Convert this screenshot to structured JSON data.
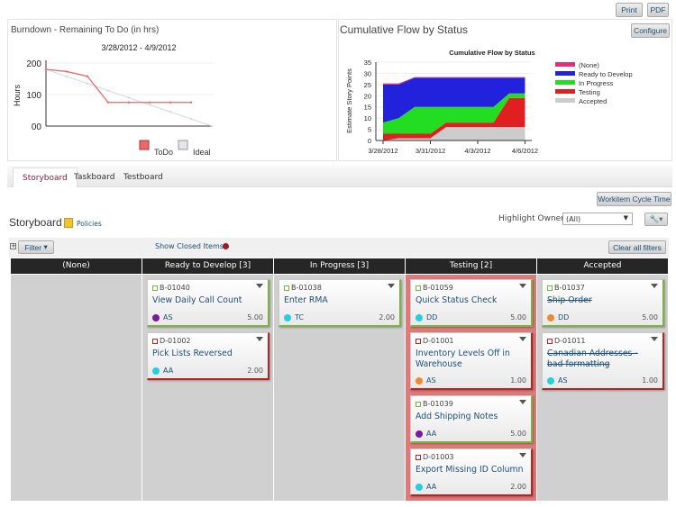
{
  "toolbar": {
    "print": "Print",
    "pdf": "PDF"
  },
  "burndown": {
    "title": "Burndown - Remaining To Do (in hrs)",
    "subtitle": "3/28/2012 - 4/9/2012"
  },
  "cfd": {
    "title": "Cumulative Flow by Status",
    "configure": "Configure"
  },
  "chart_data": [
    {
      "type": "line",
      "subtitle": "3/28/2012 - 4/9/2012",
      "ylabel": "Hours",
      "ylim": [
        0,
        200
      ],
      "yticks": [
        "200",
        "100",
        "00"
      ],
      "grid": true,
      "legend": "bottom",
      "series": [
        {
          "name": "ToDo",
          "color": "#e86a6a",
          "values": [
            180,
            173,
            158,
            75,
            75,
            75,
            75,
            75
          ]
        },
        {
          "name": "Ideal",
          "color": "#d4d8e0",
          "values": [
            180,
            157.5,
            135,
            112.5,
            90,
            67.5,
            45,
            22.5,
            0
          ]
        }
      ]
    },
    {
      "type": "area",
      "title": "Cumulative Flow by Status",
      "ylabel": "Estimate Story Points",
      "ylim": [
        0,
        35
      ],
      "yticks": [
        0,
        5,
        10,
        15,
        20,
        25,
        30,
        35
      ],
      "x": [
        "3/28/2012",
        "3/29/2012",
        "3/30/2012",
        "3/31/2012",
        "4/1/2012",
        "4/2/2012",
        "4/3/2012",
        "4/4/2012",
        "4/5/2012",
        "4/6/2012"
      ],
      "xticks": [
        "3/28/2012",
        "3/31/2012",
        "4/3/2012",
        "4/6/2012"
      ],
      "legend": "right",
      "stacked": true,
      "series": [
        {
          "name": "Accepted",
          "color": "#cccccc",
          "values": [
            0,
            1,
            1,
            1,
            6,
            6,
            6,
            6,
            6,
            6
          ]
        },
        {
          "name": "Testing",
          "color": "#e02020",
          "values": [
            3,
            2,
            2,
            2,
            2,
            2,
            2,
            2,
            13,
            13
          ]
        },
        {
          "name": "In Progress",
          "color": "#22dd22",
          "values": [
            5,
            7,
            12,
            12,
            7,
            7,
            7,
            7,
            2,
            2
          ]
        },
        {
          "name": "Ready to Develop",
          "color": "#2222dd",
          "values": [
            17,
            15,
            13,
            13,
            13,
            13,
            13,
            13,
            7,
            7
          ]
        },
        {
          "name": "(None)",
          "color": "#e0307a",
          "values": [
            0.5,
            0.5,
            0.3,
            0.3,
            0.3,
            0.3,
            0.3,
            0.3,
            0.3,
            0.3
          ]
        }
      ]
    }
  ],
  "tabs": [
    {
      "label": "Storyboard",
      "active": true
    },
    {
      "label": "Taskboard"
    },
    {
      "label": "Testboard"
    }
  ],
  "workitem_cycle_time": "Workitem Cycle Time",
  "storyboard": {
    "title": "Storyboard",
    "policies": "Policies",
    "highlight_label": "Highlight Owner:",
    "highlight_value": "(All)",
    "filter": "Filter",
    "show_closed": "Show Closed Items:",
    "clear_filters": "Clear all filters"
  },
  "columns": [
    {
      "label": "(None)",
      "cards": []
    },
    {
      "label": "Ready to Develop [3]",
      "cards": [
        {
          "id": "B-01040",
          "type": "story",
          "name": "View Daily Call Count",
          "owner": "AS",
          "color": "#7a1aa0",
          "est": "5.00"
        },
        {
          "id": "D-01002",
          "type": "defect",
          "name": "Pick Lists Reversed",
          "owner": "AA",
          "color": "#22d0e0",
          "est": "2.00"
        }
      ]
    },
    {
      "label": "In Progress [3]",
      "cards": [
        {
          "id": "B-01038",
          "type": "story",
          "name": "Enter RMA",
          "owner": "TC",
          "color": "#22d0e0",
          "est": "2.00"
        }
      ]
    },
    {
      "label": "Testing [2]",
      "highlight": "#e07a7a",
      "cards": [
        {
          "id": "B-01059",
          "type": "story",
          "name": "Quick Status Check",
          "owner": "DD",
          "color": "#22d0e0",
          "est": "5.00"
        },
        {
          "id": "D-01001",
          "type": "defect",
          "name": "Inventory Levels Off in Warehouse",
          "owner": "AS",
          "color": "#f08a30",
          "est": "1.00"
        },
        {
          "id": "B-01039",
          "type": "story",
          "name": "Add Shipping Notes",
          "owner": "AA",
          "color": "#7a1aa0",
          "est": "5.00"
        },
        {
          "id": "D-01003",
          "type": "defect",
          "name": "Export Missing ID Column",
          "owner": "AA",
          "color": "#22d0e0",
          "est": "2.00"
        }
      ]
    },
    {
      "label": "Accepted",
      "cards": [
        {
          "id": "B-01037",
          "type": "story",
          "name": "Ship Order",
          "owner": "DD",
          "color": "#f08a30",
          "est": "5.00",
          "done": true
        },
        {
          "id": "D-01011",
          "type": "defect",
          "name": "Canadian Addresses - bad formatting",
          "owner": "AS",
          "color": "#22d0e0",
          "est": "1.00",
          "done": true
        }
      ]
    }
  ]
}
